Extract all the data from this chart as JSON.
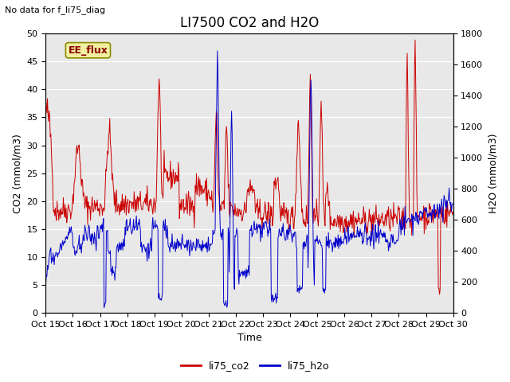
{
  "title": "LI7500 CO2 and H2O",
  "subtitle": "No data for f_li75_diag",
  "xlabel": "Time",
  "ylabel_left": "CO2 (mmol/m3)",
  "ylabel_right": "H2O (mmol/m3)",
  "annotation": "EE_flux",
  "legend": [
    "li75_co2",
    "li75_h2o"
  ],
  "co2_color": "#cc0000",
  "h2o_color": "#0000cc",
  "fig_bg": "#ffffff",
  "plot_bg": "#e8e8e8",
  "ylim_left": [
    0,
    50
  ],
  "ylim_right": [
    0,
    1800
  ],
  "yticks_left": [
    0,
    5,
    10,
    15,
    20,
    25,
    30,
    35,
    40,
    45,
    50
  ],
  "yticks_right": [
    0,
    200,
    400,
    600,
    800,
    1000,
    1200,
    1400,
    1600,
    1800
  ],
  "xtick_labels": [
    "Oct 15",
    "Oct 16",
    "Oct 17",
    "Oct 18",
    "Oct 19",
    "Oct 20",
    "Oct 21",
    "Oct 22",
    "Oct 23",
    "Oct 24",
    "Oct 25",
    "Oct 26",
    "Oct 27",
    "Oct 28",
    "Oct 29",
    "Oct 30"
  ],
  "title_fontsize": 12,
  "label_fontsize": 9,
  "tick_fontsize": 8,
  "subtitle_fontsize": 8,
  "annotation_fontsize": 9,
  "legend_fontsize": 9
}
